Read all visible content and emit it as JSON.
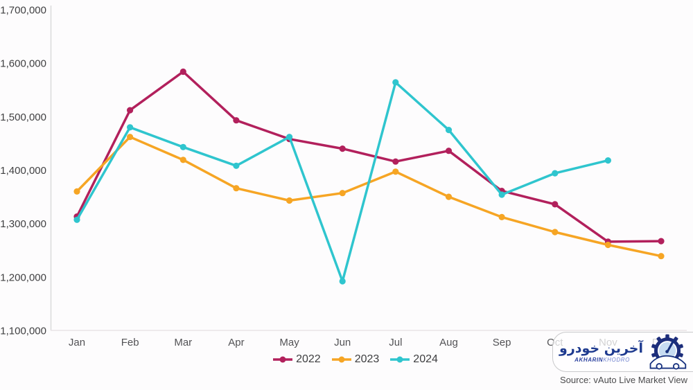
{
  "chart_data": {
    "type": "line",
    "categories": [
      "Jan",
      "Feb",
      "Mar",
      "Apr",
      "May",
      "Jun",
      "Jul",
      "Aug",
      "Sep",
      "Oct",
      "Nov",
      "Dec"
    ],
    "series": [
      {
        "name": "2022",
        "color": "#b2205c",
        "values": [
          1313000,
          1512000,
          1584000,
          1493000,
          1458000,
          1440000,
          1416000,
          1436000,
          1361000,
          1336000,
          1266000,
          1267000
        ]
      },
      {
        "name": "2023",
        "color": "#f6a524",
        "values": [
          1360000,
          1462000,
          1419000,
          1366000,
          1343000,
          1357000,
          1397000,
          1350000,
          1312000,
          1284000,
          1260000,
          1239000
        ]
      },
      {
        "name": "2024",
        "color": "#2fc5ce",
        "values": [
          1307000,
          1480000,
          1443000,
          1408000,
          1462000,
          1192000,
          1564000,
          1475000,
          1354000,
          1394000,
          1418000,
          null
        ]
      }
    ],
    "title": "",
    "xlabel": "",
    "ylabel": "",
    "ylim": [
      1100000,
      1700000
    ],
    "y_tick_step": 100000,
    "y_tick_labels": [
      "1,700,000",
      "1,600,000",
      "1,500,000",
      "1,400,000",
      "1,300,000",
      "1,200,000",
      "1,100,000"
    ],
    "grid": false,
    "legend_position": "bottom"
  },
  "watermark": {
    "persian": "آخرین خودرو",
    "latin_bold": "AKHARIN",
    "latin_light": "KHODRO"
  },
  "source": {
    "text": "Source: vAuto Live Market View"
  },
  "ui_colors": {
    "axis_line": "#d9d9db",
    "baseline": "#e9e3e7",
    "legend_text": "#3d3d3f"
  }
}
